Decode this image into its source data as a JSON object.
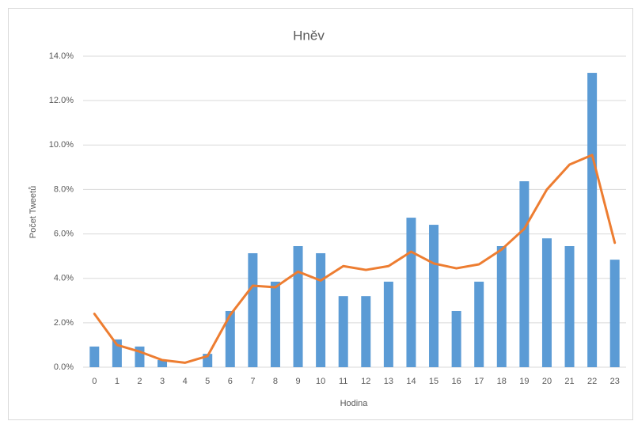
{
  "chart_data": {
    "type": "bar-line",
    "title": "Hněv",
    "xlabel": "Hodina",
    "ylabel": "Počet Tweetů",
    "categories": [
      "0",
      "1",
      "2",
      "3",
      "4",
      "5",
      "6",
      "7",
      "8",
      "9",
      "10",
      "11",
      "12",
      "13",
      "14",
      "15",
      "16",
      "17",
      "18",
      "19",
      "20",
      "21",
      "22",
      "23"
    ],
    "series": [
      {
        "type": "bar",
        "color": "#5b9bd5",
        "values": [
          0.93,
          1.25,
          0.93,
          0.32,
          0,
          0.6,
          2.53,
          5.13,
          3.85,
          5.45,
          5.13,
          3.2,
          3.2,
          3.85,
          6.73,
          6.41,
          2.53,
          3.85,
          5.45,
          8.37,
          5.8,
          5.45,
          13.25,
          4.84
        ]
      },
      {
        "type": "line",
        "color": "#ed7d31",
        "values": [
          2.4,
          1.0,
          0.7,
          0.32,
          0.2,
          0.5,
          2.35,
          3.67,
          3.6,
          4.3,
          3.9,
          4.55,
          4.38,
          4.55,
          5.2,
          4.67,
          4.45,
          4.63,
          5.3,
          6.23,
          8.0,
          9.12,
          9.55,
          5.6
        ]
      }
    ],
    "ylim": [
      0,
      14
    ],
    "yticks": [
      {
        "value": 0,
        "label": "0.0%"
      },
      {
        "value": 2,
        "label": "2.0%"
      },
      {
        "value": 4,
        "label": "4.0%"
      },
      {
        "value": 6,
        "label": "6.0%"
      },
      {
        "value": 8,
        "label": "8.0%"
      },
      {
        "value": 10,
        "label": "10.0%"
      },
      {
        "value": 12,
        "label": "12.0%"
      },
      {
        "value": 14,
        "label": "14.0%"
      }
    ],
    "grid": true
  }
}
